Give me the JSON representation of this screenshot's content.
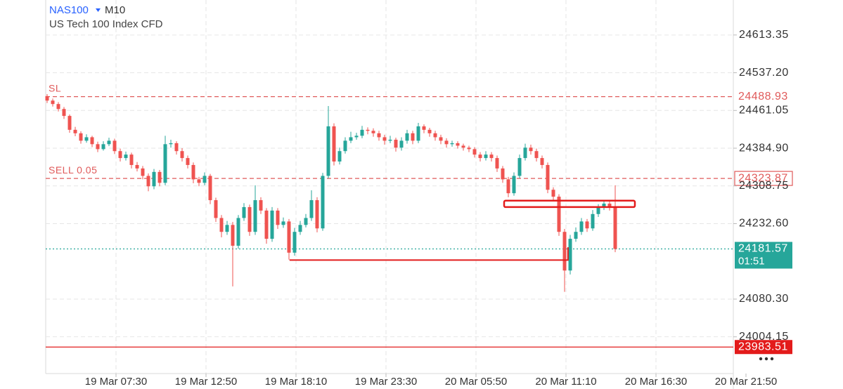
{
  "chart_data": {
    "type": "candlestick",
    "symbol": "NAS100",
    "timeframe": "M10",
    "subtitle": "US Tech 100 Index CFD",
    "up_color": "#26a69a",
    "down_color": "#ef5350",
    "grid": true,
    "xlim": [
      -0.25,
      122
    ],
    "ylim": [
      23930,
      24684
    ],
    "xticks": [
      {
        "value": 12.25,
        "label": "19 Mar 07:30"
      },
      {
        "value": 28.25,
        "label": "19 Mar 12:50"
      },
      {
        "value": 44.25,
        "label": "19 Mar 18:10"
      },
      {
        "value": 60.25,
        "label": "19 Mar 23:30"
      },
      {
        "value": 76.25,
        "label": "20 Mar 05:50"
      },
      {
        "value": 92.25,
        "label": "20 Mar 11:10"
      },
      {
        "value": 108.25,
        "label": "20 Mar 16:30"
      },
      {
        "value": 124.25,
        "label": "20 Mar 21:50"
      }
    ],
    "yticks": [
      24613.35,
      {
        "value": 24537.2,
        "label": "24537.20"
      },
      24461.05,
      {
        "value": 24384.9,
        "label": "24384.90"
      },
      24308.75,
      {
        "value": 24232.6,
        "label": "24232.60"
      },
      {
        "value": 24080.3,
        "label": "24080.30"
      },
      24004.15
    ],
    "x": [
      0,
      1,
      2,
      3,
      4,
      5,
      6,
      7,
      8,
      9,
      10,
      11,
      12,
      13,
      14,
      15,
      16,
      17,
      18,
      19,
      20,
      21,
      22,
      23,
      24,
      25,
      26,
      27,
      28,
      29,
      30,
      31,
      32,
      33,
      34,
      35,
      36,
      37,
      38,
      39,
      40,
      41,
      42,
      43,
      44,
      45,
      46,
      47,
      48,
      49,
      50,
      51,
      52,
      53,
      54,
      55,
      56,
      57,
      58,
      59,
      60,
      61,
      62,
      63,
      64,
      65,
      66,
      67,
      68,
      69,
      70,
      71,
      72,
      73,
      74,
      75,
      76,
      77,
      78,
      79,
      80,
      81,
      82,
      83,
      84,
      85,
      86,
      87,
      88,
      89,
      90,
      91,
      92,
      93,
      94,
      95,
      96,
      97,
      98,
      99,
      100,
      101
    ],
    "ohlc": [
      [
        24490,
        24494,
        24476,
        24481
      ],
      [
        24481,
        24485,
        24469,
        24474
      ],
      [
        24474,
        24478,
        24459,
        24464
      ],
      [
        24464,
        24468,
        24444,
        24450
      ],
      [
        24450,
        24453,
        24416,
        24422
      ],
      [
        24422,
        24428,
        24409,
        24415
      ],
      [
        24415,
        24419,
        24394,
        24400
      ],
      [
        24400,
        24413,
        24396,
        24407
      ],
      [
        24407,
        24410,
        24387,
        24393
      ],
      [
        24393,
        24398,
        24377,
        24383
      ],
      [
        24383,
        24399,
        24380,
        24393
      ],
      [
        24393,
        24406,
        24389,
        24400
      ],
      [
        24400,
        24404,
        24373,
        24379
      ],
      [
        24379,
        24384,
        24358,
        24365
      ],
      [
        24365,
        24378,
        24360,
        24372
      ],
      [
        24372,
        24376,
        24344,
        24351
      ],
      [
        24351,
        24357,
        24338,
        24344
      ],
      [
        24344,
        24349,
        24322,
        24329
      ],
      [
        24329,
        24334,
        24298,
        24308
      ],
      [
        24308,
        24343,
        24302,
        24337
      ],
      [
        24337,
        24341,
        24308,
        24315
      ],
      [
        24315,
        24410,
        24310,
        24393
      ],
      [
        24393,
        24402,
        24386,
        24395
      ],
      [
        24395,
        24399,
        24372,
        24379
      ],
      [
        24379,
        24385,
        24358,
        24365
      ],
      [
        24365,
        24370,
        24344,
        24351
      ],
      [
        24351,
        24356,
        24314,
        24322
      ],
      [
        24322,
        24327,
        24308,
        24315
      ],
      [
        24315,
        24336,
        24310,
        24329
      ],
      [
        24329,
        24333,
        24272,
        24280
      ],
      [
        24280,
        24285,
        24236,
        24244
      ],
      [
        24244,
        24250,
        24205,
        24216
      ],
      [
        24216,
        24238,
        24210,
        24230
      ],
      [
        24230,
        24236,
        24106,
        24188
      ],
      [
        24188,
        24250,
        24182,
        24244
      ],
      [
        24244,
        24274,
        24238,
        24266
      ],
      [
        24266,
        24271,
        24208,
        24216
      ],
      [
        24216,
        24310,
        24210,
        24280
      ],
      [
        24280,
        24286,
        24252,
        24259
      ],
      [
        24259,
        24264,
        24192,
        24202
      ],
      [
        24202,
        24266,
        24196,
        24259
      ],
      [
        24259,
        24264,
        24222,
        24230
      ],
      [
        24230,
        24245,
        24224,
        24237
      ],
      [
        24237,
        24242,
        24160,
        24174
      ],
      [
        24174,
        24224,
        24168,
        24216
      ],
      [
        24216,
        24238,
        24210,
        24230
      ],
      [
        24230,
        24252,
        24225,
        24244
      ],
      [
        24244,
        24300,
        24238,
        24280
      ],
      [
        24280,
        24286,
        24215,
        24223
      ],
      [
        24223,
        24335,
        24218,
        24329
      ],
      [
        24329,
        24470,
        24324,
        24429
      ],
      [
        24429,
        24435,
        24350,
        24358
      ],
      [
        24358,
        24386,
        24352,
        24379
      ],
      [
        24379,
        24407,
        24374,
        24400
      ],
      [
        24400,
        24418,
        24395,
        24407
      ],
      [
        24407,
        24416,
        24402,
        24410
      ],
      [
        24410,
        24430,
        24405,
        24422
      ],
      [
        24422,
        24427,
        24413,
        24420
      ],
      [
        24420,
        24425,
        24408,
        24415
      ],
      [
        24415,
        24420,
        24400,
        24407
      ],
      [
        24407,
        24412,
        24392,
        24400
      ],
      [
        24400,
        24410,
        24395,
        24402
      ],
      [
        24402,
        24406,
        24378,
        24386
      ],
      [
        24386,
        24407,
        24380,
        24400
      ],
      [
        24400,
        24422,
        24394,
        24415
      ],
      [
        24415,
        24420,
        24393,
        24400
      ],
      [
        24400,
        24436,
        24395,
        24429
      ],
      [
        24429,
        24433,
        24415,
        24422
      ],
      [
        24422,
        24426,
        24408,
        24415
      ],
      [
        24415,
        24420,
        24400,
        24407
      ],
      [
        24407,
        24412,
        24393,
        24400
      ],
      [
        24400,
        24405,
        24386,
        24393
      ],
      [
        24393,
        24400,
        24388,
        24395
      ],
      [
        24395,
        24399,
        24384,
        24390
      ],
      [
        24390,
        24394,
        24380,
        24386
      ],
      [
        24386,
        24390,
        24377,
        24383
      ],
      [
        24383,
        24387,
        24366,
        24372
      ],
      [
        24372,
        24377,
        24358,
        24365
      ],
      [
        24365,
        24379,
        24360,
        24372
      ],
      [
        24372,
        24377,
        24358,
        24365
      ],
      [
        24365,
        24370,
        24337,
        24344
      ],
      [
        24344,
        24349,
        24315,
        24322
      ],
      [
        24322,
        24327,
        24286,
        24294
      ],
      [
        24294,
        24336,
        24289,
        24329
      ],
      [
        24329,
        24372,
        24324,
        24365
      ],
      [
        24365,
        24394,
        24360,
        24386
      ],
      [
        24386,
        24392,
        24372,
        24379
      ],
      [
        24379,
        24384,
        24358,
        24365
      ],
      [
        24365,
        24370,
        24344,
        24351
      ],
      [
        24351,
        24356,
        24294,
        24301
      ],
      [
        24301,
        24306,
        24280,
        24287
      ],
      [
        24287,
        24292,
        24208,
        24216
      ],
      [
        24216,
        24222,
        24095,
        24138
      ],
      [
        24138,
        24210,
        24130,
        24202
      ],
      [
        24202,
        24225,
        24196,
        24216
      ],
      [
        24216,
        24244,
        24210,
        24237
      ],
      [
        24237,
        24242,
        24216,
        24223
      ],
      [
        24223,
        24260,
        24218,
        24252
      ],
      [
        24252,
        24272,
        24246,
        24266
      ],
      [
        24266,
        24280,
        24260,
        24273
      ],
      [
        24273,
        24278,
        24259,
        24266
      ],
      [
        24266,
        24310,
        24175,
        24181.57
      ]
    ],
    "levels": [
      {
        "name": "SL",
        "value": 24488.93,
        "color": "#e05a5a",
        "line": "dashed",
        "box": "none"
      },
      {
        "name": "SELL 0.05",
        "value": 24323.87,
        "color": "#e05a5a",
        "line": "dashed",
        "box": "outline"
      },
      {
        "value": 24181.57,
        "countdown": "01:51",
        "color": "#26a69a",
        "line": "dotted",
        "box": "fill"
      },
      {
        "value": 23983.51,
        "color": "#e31b1b",
        "line": "solid",
        "box": "fill"
      }
    ],
    "drawings": [
      {
        "kind": "rect",
        "color": "#e31b1b",
        "x": [
          81.25,
          104.5
        ],
        "y": [
          24266,
          24279
        ]
      },
      {
        "kind": "polyline",
        "color": "#e31b1b",
        "x": [
          43.1,
          92.6,
          92.6
        ],
        "y": [
          24159,
          24159,
          24185
        ]
      }
    ]
  }
}
